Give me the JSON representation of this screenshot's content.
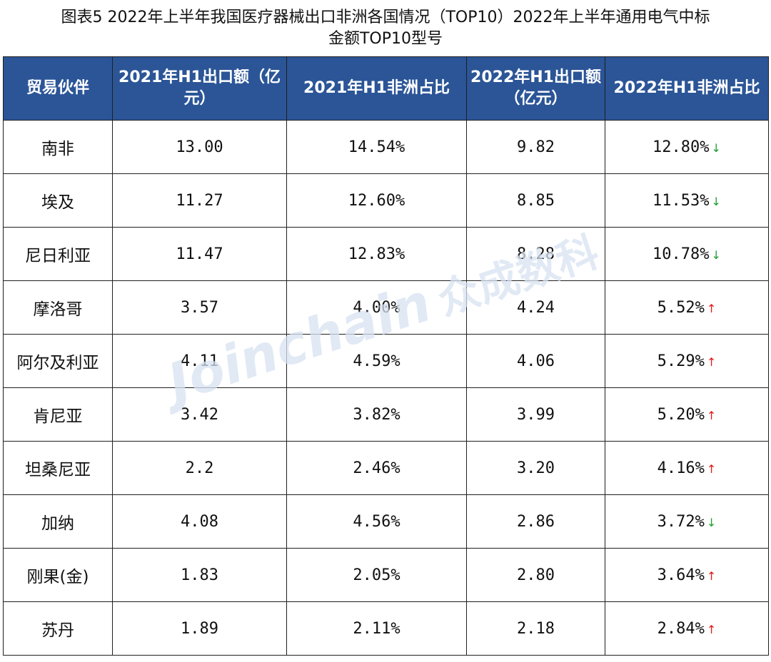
{
  "caption": {
    "line1": "图表5  2022年上半年我国医疗器械出口非洲各国情况（TOP10）2022年上半年通用电气中标",
    "line2": "金额TOP10型号"
  },
  "headers": [
    "贸易伙伴",
    "2021年H1出口额（亿元）",
    "2021年H1非洲占比",
    "2022年H1出口额（亿元）",
    "2022年H1非洲占比"
  ],
  "rows": [
    {
      "partner": "南非",
      "exp2021": "13.00",
      "share2021": "14.54%",
      "exp2022": "9.82",
      "share2022": "12.80%",
      "trend": "down"
    },
    {
      "partner": "埃及",
      "exp2021": "11.27",
      "share2021": "12.60%",
      "exp2022": "8.85",
      "share2022": "11.53%",
      "trend": "down"
    },
    {
      "partner": "尼日利亚",
      "exp2021": "11.47",
      "share2021": "12.83%",
      "exp2022": "8.28",
      "share2022": "10.78%",
      "trend": "down"
    },
    {
      "partner": "摩洛哥",
      "exp2021": "3.57",
      "share2021": "4.00%",
      "exp2022": "4.24",
      "share2022": "5.52%",
      "trend": "up"
    },
    {
      "partner": "阿尔及利亚",
      "exp2021": "4.11",
      "share2021": "4.59%",
      "exp2022": "4.06",
      "share2022": "5.29%",
      "trend": "up"
    },
    {
      "partner": "肯尼亚",
      "exp2021": "3.42",
      "share2021": "3.82%",
      "exp2022": "3.99",
      "share2022": "5.20%",
      "trend": "up"
    },
    {
      "partner": "坦桑尼亚",
      "exp2021": "2.2",
      "share2021": "2.46%",
      "exp2022": "3.20",
      "share2022": "4.16%",
      "trend": "up"
    },
    {
      "partner": "加纳",
      "exp2021": "4.08",
      "share2021": "4.56%",
      "exp2022": "2.86",
      "share2022": "3.72%",
      "trend": "down"
    },
    {
      "partner": "刚果(金)",
      "exp2021": "1.83",
      "share2021": "2.05%",
      "exp2022": "2.80",
      "share2022": "3.64%",
      "trend": "up"
    },
    {
      "partner": "苏丹",
      "exp2021": "1.89",
      "share2021": "2.11%",
      "exp2022": "2.18",
      "share2022": "2.84%",
      "trend": "up"
    }
  ],
  "arrows": {
    "up": "↑",
    "down": "↓"
  },
  "colors": {
    "header_bg": "#2b5597",
    "up": "#e01818",
    "down": "#1a9e2f"
  },
  "watermark": {
    "brand": "Joinchain",
    "cn": "众成数科"
  }
}
